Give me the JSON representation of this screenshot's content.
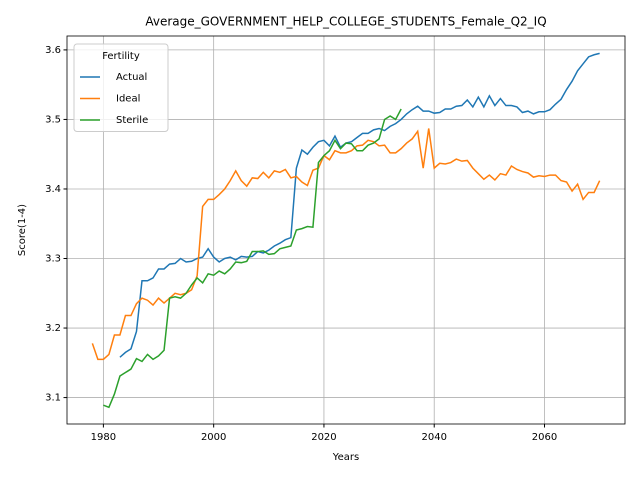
{
  "chart_data": {
    "type": "line",
    "title": "Average_GOVERNMENT_HELP_COLLEGE_STUDENTS_Female_Q2_IQ",
    "x_label": "Years",
    "y_label": "Score(1-4)",
    "legend_title": "Fertility",
    "legend_position": "upper left",
    "grid": true,
    "xlim": [
      1973.4,
      2074.6
    ],
    "ylim": [
      3.062,
      3.62
    ],
    "xticks": [
      1980,
      2000,
      2020,
      2040,
      2060
    ],
    "yticks": [
      3.1,
      3.2,
      3.3,
      3.4,
      3.5,
      3.6
    ],
    "x": [
      1978,
      1979,
      1980,
      1981,
      1982,
      1983,
      1984,
      1985,
      1986,
      1987,
      1988,
      1989,
      1990,
      1991,
      1992,
      1993,
      1994,
      1995,
      1996,
      1997,
      1998,
      1999,
      2000,
      2001,
      2002,
      2003,
      2004,
      2005,
      2006,
      2007,
      2008,
      2009,
      2010,
      2011,
      2012,
      2013,
      2014,
      2015,
      2016,
      2017,
      2018,
      2019,
      2020,
      2021,
      2022,
      2023,
      2024,
      2025,
      2026,
      2027,
      2028,
      2029,
      2030,
      2031,
      2032,
      2033,
      2034,
      2035,
      2036,
      2037,
      2038,
      2039,
      2040,
      2041,
      2042,
      2043,
      2044,
      2045,
      2046,
      2047,
      2048,
      2049,
      2050,
      2051,
      2052,
      2053,
      2054,
      2055,
      2056,
      2057,
      2058,
      2059,
      2060,
      2061,
      2062,
      2063,
      2064,
      2065,
      2066,
      2067,
      2068,
      2069,
      2070
    ],
    "series": [
      {
        "name": "Actual",
        "color": "#1f77b4",
        "values": [
          null,
          null,
          null,
          null,
          null,
          3.158,
          3.165,
          3.17,
          3.195,
          3.268,
          3.268,
          3.272,
          3.285,
          3.285,
          3.292,
          3.293,
          3.3,
          3.295,
          3.296,
          3.3,
          3.302,
          3.314,
          3.302,
          3.295,
          3.3,
          3.302,
          3.298,
          3.303,
          3.302,
          3.303,
          3.31,
          3.308,
          3.312,
          3.318,
          3.322,
          3.327,
          3.33,
          3.43,
          3.456,
          3.45,
          3.46,
          3.468,
          3.47,
          3.462,
          3.476,
          3.46,
          3.466,
          3.468,
          3.474,
          3.48,
          3.48,
          3.485,
          3.487,
          3.484,
          3.49,
          3.494,
          3.5,
          3.508,
          3.514,
          3.519,
          3.512,
          3.512,
          3.509,
          3.51,
          3.515,
          3.515,
          3.519,
          3.52,
          3.528,
          3.518,
          3.532,
          3.518,
          3.534,
          3.52,
          3.53,
          3.52,
          3.52,
          3.518,
          3.51,
          3.512,
          3.508,
          3.511,
          3.511,
          3.514,
          3.522,
          3.529,
          3.543,
          3.555,
          3.57,
          3.58,
          3.59,
          3.593,
          3.595
        ]
      },
      {
        "name": "Ideal",
        "color": "#ff7f0e",
        "values": [
          3.178,
          3.155,
          3.155,
          3.162,
          3.19,
          3.19,
          3.218,
          3.218,
          3.235,
          3.243,
          3.24,
          3.233,
          3.243,
          3.236,
          3.243,
          3.25,
          3.248,
          3.25,
          3.255,
          3.275,
          3.375,
          3.385,
          3.385,
          3.392,
          3.4,
          3.412,
          3.426,
          3.412,
          3.404,
          3.416,
          3.415,
          3.424,
          3.416,
          3.426,
          3.424,
          3.428,
          3.416,
          3.418,
          3.41,
          3.405,
          3.427,
          3.43,
          3.448,
          3.442,
          3.455,
          3.452,
          3.452,
          3.455,
          3.462,
          3.463,
          3.47,
          3.468,
          3.462,
          3.463,
          3.452,
          3.452,
          3.458,
          3.466,
          3.472,
          3.483,
          3.43,
          3.487,
          3.43,
          3.437,
          3.436,
          3.438,
          3.443,
          3.44,
          3.441,
          3.43,
          3.422,
          3.414,
          3.42,
          3.413,
          3.422,
          3.42,
          3.433,
          3.428,
          3.425,
          3.423,
          3.417,
          3.419,
          3.418,
          3.42,
          3.42,
          3.412,
          3.41,
          3.397,
          3.407,
          3.385,
          3.395,
          3.395,
          3.412
        ]
      },
      {
        "name": "Sterile",
        "color": "#2ca02c",
        "values": [
          null,
          null,
          3.089,
          3.086,
          3.105,
          3.131,
          3.136,
          3.141,
          3.156,
          3.152,
          3.162,
          3.155,
          3.16,
          3.168,
          3.243,
          3.245,
          3.243,
          3.25,
          3.262,
          3.272,
          3.265,
          3.278,
          3.276,
          3.282,
          3.278,
          3.285,
          3.295,
          3.294,
          3.296,
          3.31,
          3.31,
          3.311,
          3.306,
          3.307,
          3.314,
          3.316,
          3.318,
          3.341,
          3.343,
          3.346,
          3.345,
          3.438,
          3.448,
          3.455,
          3.47,
          3.458,
          3.466,
          3.465,
          3.455,
          3.455,
          3.463,
          3.466,
          3.472,
          3.5,
          3.505,
          3.5,
          3.515,
          null,
          null,
          null,
          null,
          null,
          null,
          null,
          null,
          null,
          null,
          null,
          null,
          null,
          null,
          null,
          null,
          null,
          null,
          null,
          null,
          null,
          null,
          null,
          null,
          null,
          null,
          null,
          null,
          null,
          null,
          null,
          null,
          null,
          null,
          null,
          null
        ]
      }
    ]
  }
}
